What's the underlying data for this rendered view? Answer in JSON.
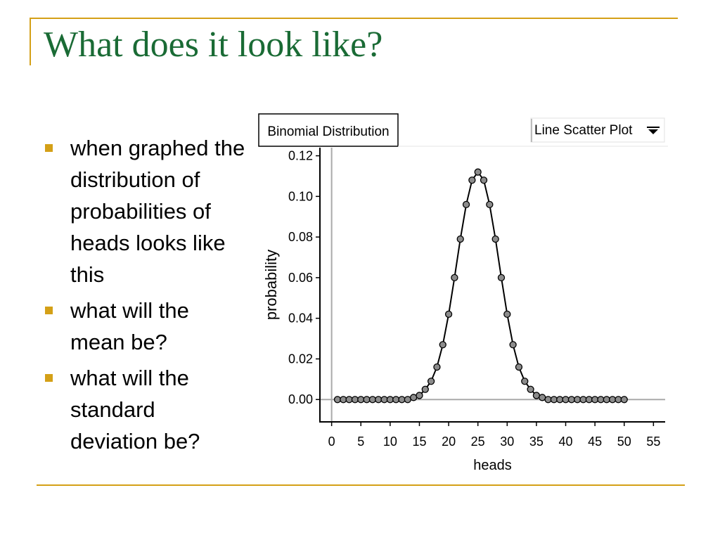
{
  "slide": {
    "title": "What does it look like?",
    "accent_color": "#d4a017",
    "title_color": "#1a6b35",
    "bullets": [
      "when graphed the distribution of probabilities of heads looks like this",
      "what will the mean be?",
      "what will the standard deviation be?"
    ]
  },
  "plot_controls": {
    "distribution_label": "Binomial Distribution",
    "plot_type_label": "Line Scatter Plot",
    "dropdown_icon": "triangle-down-icon"
  },
  "chart_data": {
    "type": "line",
    "xlabel": "heads",
    "ylabel": "probability",
    "xlim": [
      -2,
      57
    ],
    "ylim": [
      -0.011,
      0.124
    ],
    "xticks": [
      0,
      5,
      10,
      15,
      20,
      25,
      30,
      35,
      40,
      45,
      50,
      55
    ],
    "xtick_labels": [
      "0",
      "5",
      "10",
      "15",
      "20",
      "25",
      "30",
      "35",
      "40",
      "45",
      "50",
      "55"
    ],
    "yticks": [
      0.0,
      0.02,
      0.04,
      0.06,
      0.08,
      0.1,
      0.12
    ],
    "ytick_labels": [
      "0.00",
      "0.02",
      "0.04",
      "0.06",
      "0.08",
      "0.10",
      "0.12"
    ],
    "line_color": "#000000",
    "marker_color": "#8c8c8c",
    "series": [
      {
        "x": [
          1,
          2,
          3,
          4,
          5,
          6,
          7,
          8,
          9,
          10,
          11,
          12,
          13,
          14,
          15,
          16,
          17,
          18,
          19,
          20,
          21,
          22,
          23,
          24,
          25,
          26,
          27,
          28,
          29,
          30,
          31,
          32,
          33,
          34,
          35,
          36,
          37,
          38,
          39,
          40,
          41,
          42,
          43,
          44,
          45,
          46,
          47,
          48,
          49,
          50
        ],
        "values": [
          0,
          0,
          0,
          0,
          0,
          0,
          0,
          0,
          0,
          0,
          0,
          0,
          0,
          0.001,
          0.002,
          0.005,
          0.009,
          0.016,
          0.027,
          0.042,
          0.06,
          0.079,
          0.096,
          0.108,
          0.112,
          0.108,
          0.096,
          0.079,
          0.06,
          0.042,
          0.027,
          0.016,
          0.009,
          0.005,
          0.002,
          0.001,
          0,
          0,
          0,
          0,
          0,
          0,
          0,
          0,
          0,
          0,
          0,
          0,
          0,
          0
        ]
      }
    ]
  }
}
